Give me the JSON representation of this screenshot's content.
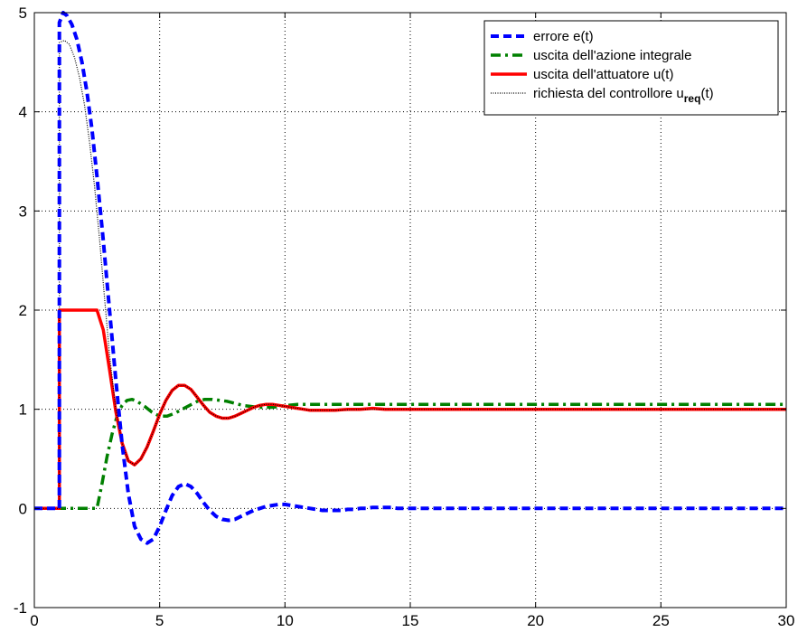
{
  "chart_data": {
    "type": "line",
    "title": "",
    "xlabel": "",
    "ylabel": "",
    "xlim": [
      0,
      30
    ],
    "ylim": [
      -1,
      5
    ],
    "xticks": [
      0,
      5,
      10,
      15,
      20,
      25,
      30
    ],
    "yticks": [
      -1,
      0,
      1,
      2,
      3,
      4,
      5
    ],
    "xtick_labels": [
      "0",
      "5",
      "10",
      "15",
      "20",
      "25",
      "30"
    ],
    "ytick_labels": [
      "-1",
      "0",
      "1",
      "2",
      "3",
      "4",
      "5"
    ],
    "grid": true,
    "legend_position": "top-right",
    "series": [
      {
        "name": "errore e(t)",
        "color": "#0000ff",
        "style": "dashed",
        "x": [
          0,
          1,
          1,
          1.15,
          1.3,
          1.5,
          1.7,
          1.9,
          2.1,
          2.3,
          2.5,
          2.75,
          3.0,
          3.25,
          3.5,
          3.75,
          4.0,
          4.25,
          4.5,
          4.75,
          5.0,
          5.25,
          5.5,
          5.75,
          6.0,
          6.25,
          6.5,
          6.75,
          7.0,
          7.25,
          7.5,
          7.75,
          8.0,
          8.25,
          8.5,
          8.75,
          9.0,
          9.25,
          9.5,
          9.75,
          10.0,
          10.25,
          10.5,
          10.75,
          11.0,
          11.25,
          11.5,
          11.75,
          12.0,
          12.25,
          12.5,
          12.75,
          13.0,
          13.25,
          13.5,
          13.75,
          14.0,
          14.25,
          14.5,
          14.75,
          15.0,
          15.25,
          15.5,
          15.75,
          16.0,
          16.5,
          17.0,
          30.0
        ],
        "y": [
          0,
          0,
          4.9,
          5.0,
          4.97,
          4.88,
          4.73,
          4.5,
          4.2,
          3.82,
          3.35,
          2.7,
          2.0,
          1.3,
          0.65,
          0.15,
          -0.18,
          -0.31,
          -0.35,
          -0.31,
          -0.18,
          -0.02,
          0.13,
          0.22,
          0.25,
          0.22,
          0.15,
          0.06,
          -0.02,
          -0.08,
          -0.11,
          -0.12,
          -0.11,
          -0.08,
          -0.05,
          -0.02,
          0.0,
          0.02,
          0.03,
          0.04,
          0.04,
          0.03,
          0.02,
          0.01,
          0.0,
          -0.01,
          -0.02,
          -0.02,
          -0.02,
          -0.02,
          -0.01,
          -0.01,
          0.0,
          0.0,
          0.01,
          0.01,
          0.01,
          0.01,
          0.0,
          0.0,
          0.0,
          0.0,
          0.0,
          0.0,
          0.0,
          0.0,
          0.0,
          0.0
        ]
      },
      {
        "name": "uscita dell'azione integrale",
        "color": "#008000",
        "style": "dashdot",
        "x": [
          0,
          2.5,
          2.7,
          2.9,
          3.1,
          3.3,
          3.5,
          3.7,
          3.9,
          4.1,
          4.4,
          4.7,
          5.0,
          5.3,
          5.6,
          5.9,
          6.2,
          6.5,
          6.8,
          7.1,
          7.4,
          7.7,
          8.0,
          8.3,
          8.6,
          8.9,
          9.2,
          9.5,
          9.8,
          10.1,
          10.5,
          11.0,
          11.5,
          12.0,
          12.5,
          13.0,
          14.0,
          30.0
        ],
        "y": [
          0,
          0,
          0.25,
          0.52,
          0.75,
          0.93,
          1.04,
          1.09,
          1.1,
          1.08,
          1.03,
          0.97,
          0.93,
          0.93,
          0.96,
          1.0,
          1.04,
          1.08,
          1.1,
          1.1,
          1.09,
          1.08,
          1.06,
          1.04,
          1.03,
          1.02,
          1.02,
          1.02,
          1.03,
          1.04,
          1.05,
          1.05,
          1.05,
          1.05,
          1.05,
          1.05,
          1.05,
          1.05
        ]
      },
      {
        "name": "uscita dell'attuatore u(t)",
        "color": "#ff0000",
        "style": "solid",
        "x": [
          0,
          1,
          1,
          2.5,
          2.75,
          3.0,
          3.25,
          3.5,
          3.75,
          4.0,
          4.25,
          4.5,
          4.75,
          5.0,
          5.25,
          5.5,
          5.75,
          6.0,
          6.25,
          6.5,
          6.75,
          7.0,
          7.25,
          7.5,
          7.75,
          8.0,
          8.25,
          8.5,
          8.75,
          9.0,
          9.25,
          9.5,
          9.75,
          10.0,
          10.25,
          10.5,
          10.75,
          11.0,
          11.25,
          11.5,
          11.75,
          12.0,
          12.5,
          13.0,
          13.5,
          14.0,
          14.5,
          15.0,
          16.0,
          30.0
        ],
        "y": [
          0,
          0,
          2.0,
          2.0,
          1.8,
          1.4,
          0.98,
          0.66,
          0.48,
          0.44,
          0.5,
          0.62,
          0.78,
          0.95,
          1.09,
          1.19,
          1.24,
          1.24,
          1.2,
          1.12,
          1.04,
          0.97,
          0.93,
          0.91,
          0.91,
          0.93,
          0.96,
          0.99,
          1.02,
          1.04,
          1.05,
          1.05,
          1.04,
          1.03,
          1.02,
          1.01,
          1.0,
          0.99,
          0.99,
          0.99,
          0.99,
          0.99,
          1.0,
          1.0,
          1.01,
          1.0,
          1.0,
          1.0,
          1.0,
          1.0
        ]
      },
      {
        "name": "richiesta del controllore u",
        "name_subscript": "req",
        "name_suffix": "(t)",
        "color": "#000000",
        "style": "dotted",
        "x": [
          0,
          1,
          1,
          1.2,
          1.4,
          1.6,
          1.8,
          2.0,
          2.2,
          2.4,
          2.6,
          2.8,
          3.0,
          3.25,
          3.5,
          3.75,
          4.0,
          4.25,
          4.5,
          4.75,
          5.0,
          5.25,
          5.5,
          5.75,
          6.0,
          6.25,
          6.5,
          6.75,
          7.0,
          7.25,
          7.5,
          7.75,
          8.0,
          8.25,
          8.5,
          8.75,
          9.0,
          9.25,
          9.5,
          9.75,
          10.0,
          10.5,
          11.0,
          11.5,
          12.0,
          13.0,
          14.0,
          30.0
        ],
        "y": [
          0,
          0,
          4.7,
          4.72,
          4.68,
          4.55,
          4.35,
          4.07,
          3.7,
          3.25,
          2.72,
          2.12,
          1.55,
          1.0,
          0.66,
          0.48,
          0.44,
          0.5,
          0.62,
          0.78,
          0.95,
          1.09,
          1.19,
          1.24,
          1.24,
          1.2,
          1.12,
          1.04,
          0.97,
          0.93,
          0.91,
          0.91,
          0.93,
          0.96,
          0.99,
          1.02,
          1.04,
          1.05,
          1.05,
          1.04,
          1.03,
          1.01,
          0.99,
          0.99,
          0.99,
          1.0,
          1.0,
          1.0
        ]
      }
    ]
  }
}
